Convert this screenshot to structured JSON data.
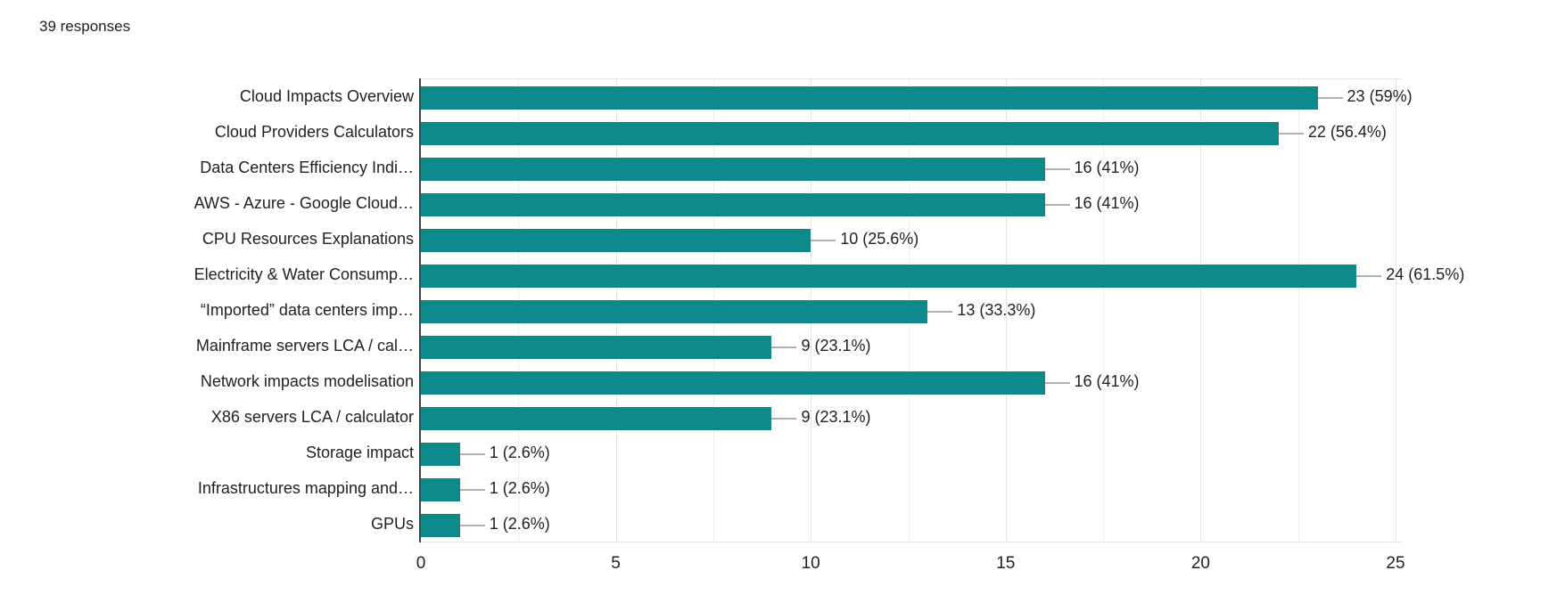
{
  "header": {
    "responses_label": "39 responses"
  },
  "chart_data": {
    "type": "bar",
    "orientation": "horizontal",
    "title": "39 responses",
    "categories": [
      "Cloud Impacts Overview",
      "Cloud Providers Calculators",
      "Data Centers Efficiency Indi…",
      "AWS - Azure - Google Cloud…",
      "CPU Resources Explanations",
      "Electricity & Water Consump…",
      "“Imported” data centers imp…",
      "Mainframe servers LCA / cal…",
      "Network impacts modelisation",
      "X86 servers LCA / calculator",
      "Storage impact",
      "Infrastructures mapping and…",
      "GPUs"
    ],
    "values": [
      23,
      22,
      16,
      16,
      10,
      24,
      13,
      9,
      16,
      9,
      1,
      1,
      1
    ],
    "value_labels": [
      "23 (59%)",
      "22 (56.4%)",
      "16 (41%)",
      "16 (41%)",
      "10 (25.6%)",
      "24 (61.5%)",
      "13 (33.3%)",
      "9 (23.1%)",
      "16 (41%)",
      "9 (23.1%)",
      "1 (2.6%)",
      "1 (2.6%)",
      "1 (2.6%)"
    ],
    "x_ticks": [
      "0",
      "5",
      "10",
      "15",
      "20",
      "25"
    ],
    "x_tick_values": [
      0,
      5,
      10,
      15,
      20,
      25
    ],
    "xlim": [
      0,
      25
    ],
    "minor_grid_step": 2.5,
    "grid": true,
    "legend_position": "none",
    "xlabel": "",
    "ylabel": "",
    "colors": {
      "bar": "#0e898b",
      "axis_line": "#424242",
      "gridline_minor": "#efefef",
      "gridline_major": "#e3e3e3",
      "leader_line": "#b0b0b0",
      "text": "#212121",
      "title_text": "#202124"
    }
  }
}
